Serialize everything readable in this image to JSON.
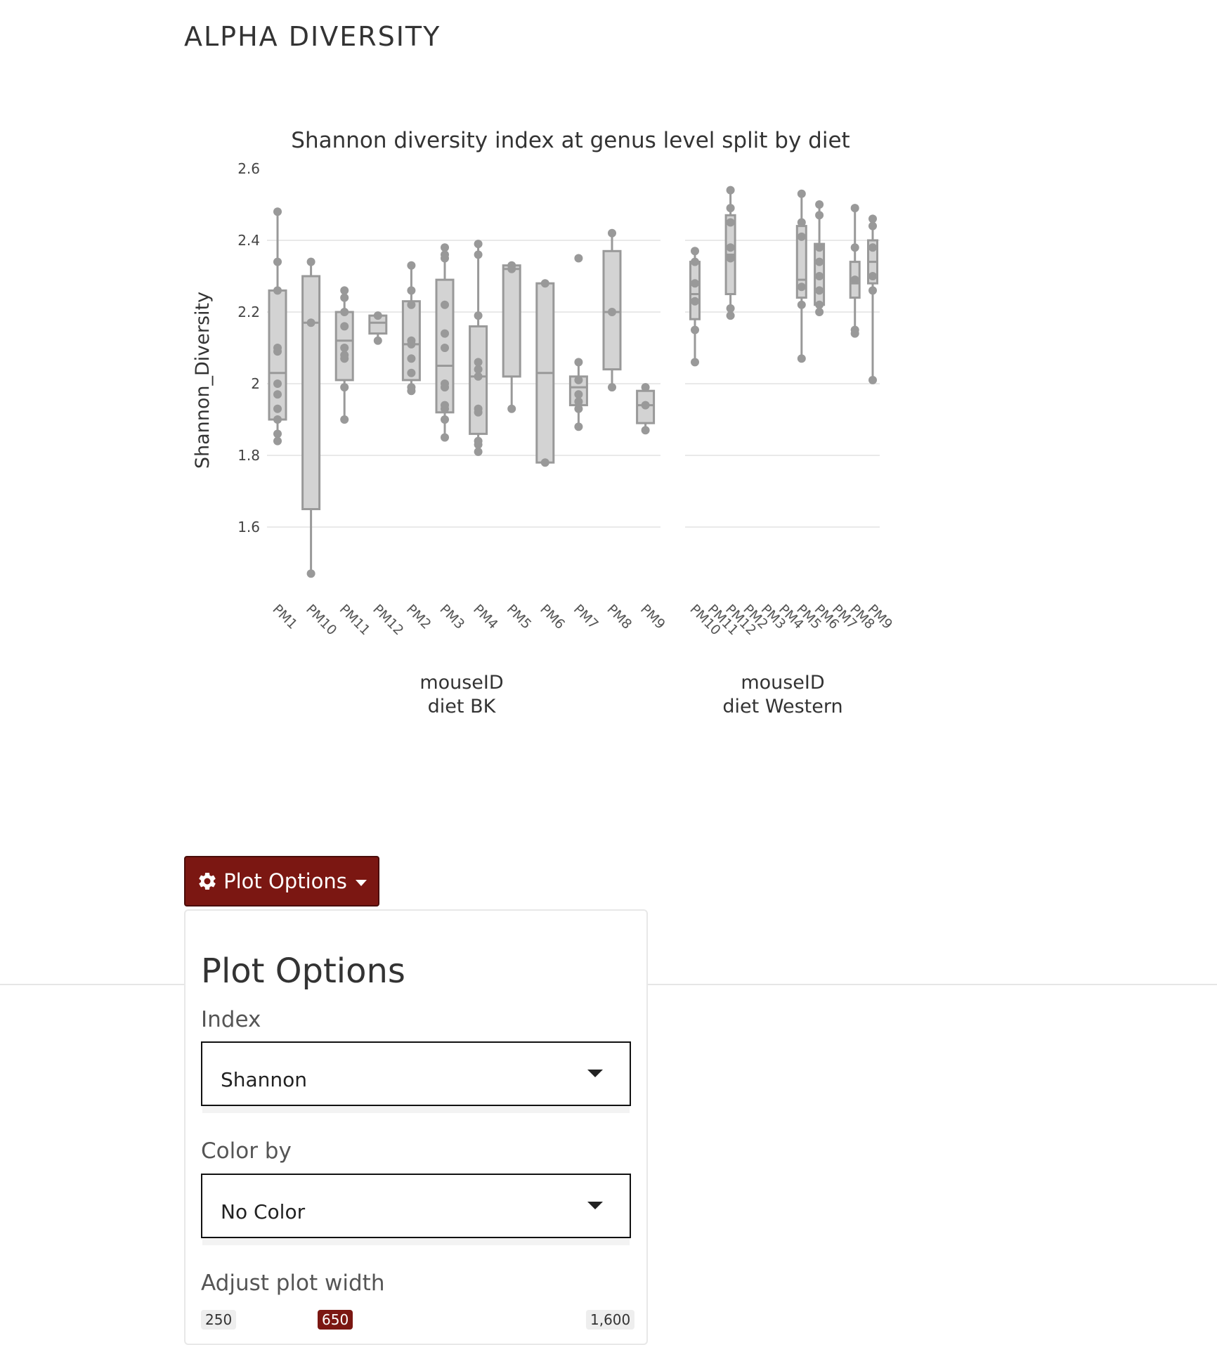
{
  "page": {
    "section_title": "ALPHA DIVERSITY"
  },
  "chart_data": {
    "type": "box",
    "title": "Shannon diversity index at genus level split by diet",
    "ylabel": "Shannon_Diversity",
    "ylim": [
      1.45,
      2.6
    ],
    "yticks": [
      1.6,
      1.8,
      2,
      2.2,
      2.4,
      2.6
    ],
    "ytick_labels": [
      "1.6",
      "1.8",
      "2",
      "2.2",
      "2.4",
      "2.6"
    ],
    "grid": true,
    "box_color": "#999999",
    "fill_color": "#d3d3d3",
    "panels": [
      {
        "xlabel": "mouseID",
        "facet_label": "diet BK",
        "categories": [
          "PM1",
          "PM10",
          "PM11",
          "PM12",
          "PM2",
          "PM3",
          "PM4",
          "PM5",
          "PM6",
          "PM7",
          "PM8",
          "PM9"
        ],
        "boxes": [
          {
            "min": 1.84,
            "q1": 1.9,
            "median": 2.03,
            "q3": 2.26,
            "max": 2.48,
            "points": [
              2.48,
              2.34,
              2.26,
              2.1,
              2.09,
              2.0,
              1.97,
              1.93,
              1.9,
              1.86,
              1.84
            ]
          },
          {
            "min": 1.47,
            "q1": 1.65,
            "median": 2.17,
            "q3": 2.3,
            "max": 2.34,
            "points": [
              2.34,
              2.17,
              1.47
            ]
          },
          {
            "min": 1.9,
            "q1": 2.01,
            "median": 2.12,
            "q3": 2.2,
            "max": 2.26,
            "points": [
              2.26,
              2.24,
              2.2,
              2.16,
              2.1,
              2.08,
              2.07,
              1.99,
              1.9
            ]
          },
          {
            "min": 2.12,
            "q1": 2.14,
            "median": 2.17,
            "q3": 2.19,
            "max": 2.19,
            "points": [
              2.19,
              2.12
            ]
          },
          {
            "min": 1.98,
            "q1": 2.01,
            "median": 2.11,
            "q3": 2.23,
            "max": 2.33,
            "points": [
              2.33,
              2.26,
              2.22,
              2.12,
              2.11,
              2.07,
              2.03,
              1.99,
              1.98
            ]
          },
          {
            "min": 1.84,
            "q1": 1.92,
            "median": 2.05,
            "q3": 2.29,
            "max": 2.38,
            "points": [
              2.38,
              2.36,
              2.35,
              2.22,
              2.14,
              2.1,
              2.0,
              1.99,
              1.94,
              1.93,
              1.9,
              1.85
            ]
          },
          {
            "min": 1.81,
            "q1": 1.86,
            "median": 2.02,
            "q3": 2.16,
            "max": 2.39,
            "points": [
              2.39,
              2.36,
              2.19,
              2.06,
              2.04,
              2.02,
              1.93,
              1.92,
              1.84,
              1.83,
              1.81
            ]
          },
          {
            "min": 1.93,
            "q1": 2.02,
            "median": 2.32,
            "q3": 2.33,
            "max": 2.33,
            "points": [
              2.33,
              2.32,
              1.93
            ]
          },
          {
            "min": 1.77,
            "q1": 1.78,
            "median": 2.03,
            "q3": 2.28,
            "max": 2.28,
            "points": [
              2.28,
              1.78
            ]
          },
          {
            "min": 1.88,
            "q1": 1.94,
            "median": 1.99,
            "q3": 2.02,
            "max": 2.06,
            "points": [
              2.35,
              2.06,
              2.01,
              1.97,
              1.95,
              1.93,
              1.88
            ]
          },
          {
            "min": 1.99,
            "q1": 2.04,
            "median": 2.2,
            "q3": 2.37,
            "max": 2.42,
            "points": [
              2.42,
              2.2,
              1.99
            ]
          },
          {
            "min": 1.87,
            "q1": 1.89,
            "median": 1.94,
            "q3": 1.98,
            "max": 1.99,
            "points": [
              1.99,
              1.94,
              1.87
            ]
          }
        ]
      },
      {
        "xlabel": "mouseID",
        "facet_label": "diet Western",
        "categories": [
          "PM10",
          "PM11",
          "PM12",
          "PM2",
          "PM3",
          "PM4",
          "PM5",
          "PM6",
          "PM7",
          "PM8",
          "PM9"
        ],
        "boxes": [
          {
            "min": 2.06,
            "q1": 2.18,
            "median": 2.25,
            "q3": 2.34,
            "max": 2.37,
            "points": [
              2.37,
              2.34,
              2.28,
              2.23,
              2.15,
              2.06
            ]
          },
          null,
          {
            "min": 2.19,
            "q1": 2.25,
            "median": 2.36,
            "q3": 2.47,
            "max": 2.54,
            "points": [
              2.54,
              2.49,
              2.45,
              2.38,
              2.35,
              2.21,
              2.19
            ]
          },
          null,
          null,
          null,
          {
            "min": 2.07,
            "q1": 2.24,
            "median": 2.29,
            "q3": 2.44,
            "max": 2.53,
            "points": [
              2.53,
              2.45,
              2.41,
              2.27,
              2.22,
              2.07
            ]
          },
          {
            "min": 2.2,
            "q1": 2.22,
            "median": 2.3,
            "q3": 2.39,
            "max": 2.5,
            "points": [
              2.5,
              2.47,
              2.38,
              2.34,
              2.3,
              2.26,
              2.22,
              2.2
            ]
          },
          null,
          {
            "min": 2.14,
            "q1": 2.24,
            "median": 2.28,
            "q3": 2.34,
            "max": 2.49,
            "points": [
              2.49,
              2.38,
              2.29,
              2.15,
              2.14
            ]
          },
          {
            "min": 2.01,
            "q1": 2.28,
            "median": 2.34,
            "q3": 2.4,
            "max": 2.46,
            "points": [
              2.46,
              2.44,
              2.38,
              2.3,
              2.26,
              2.01
            ]
          }
        ]
      }
    ]
  },
  "controls": {
    "plot_options_button_label": "Plot Options",
    "panel_title": "Plot Options",
    "index_label": "Index",
    "index_value": "Shannon",
    "color_by_label": "Color by",
    "color_by_value": "No Color",
    "width_label": "Adjust plot width",
    "width_min": "250",
    "width_value": "650",
    "width_max": "1,600",
    "accent_color": "#7b1712"
  }
}
